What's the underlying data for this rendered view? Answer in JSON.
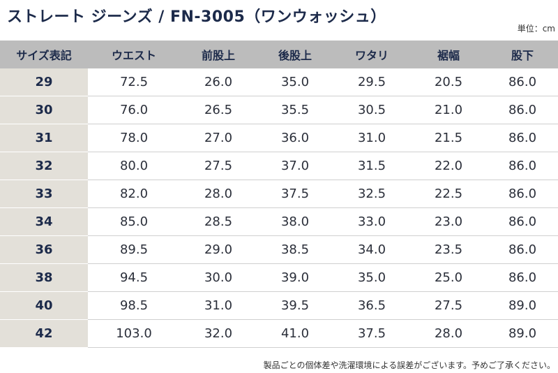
{
  "title": "ストレート ジーンズ / FN-3005（ワンウォッシュ）",
  "unit": "単位：cm",
  "headers": [
    "サイズ表記",
    "ウエスト",
    "前股上",
    "後股上",
    "ワタリ",
    "裾幅",
    "股下"
  ],
  "rows": [
    [
      "29",
      "72.5",
      "26.0",
      "35.0",
      "29.5",
      "20.5",
      "86.0"
    ],
    [
      "30",
      "76.0",
      "26.5",
      "35.5",
      "30.5",
      "21.0",
      "86.0"
    ],
    [
      "31",
      "78.0",
      "27.0",
      "36.0",
      "31.0",
      "21.5",
      "86.0"
    ],
    [
      "32",
      "80.0",
      "27.5",
      "37.0",
      "31.5",
      "22.0",
      "86.0"
    ],
    [
      "33",
      "82.0",
      "28.0",
      "37.5",
      "32.5",
      "22.5",
      "86.0"
    ],
    [
      "34",
      "85.0",
      "28.5",
      "38.0",
      "33.0",
      "23.0",
      "86.0"
    ],
    [
      "36",
      "89.5",
      "29.0",
      "38.5",
      "34.0",
      "23.5",
      "86.0"
    ],
    [
      "38",
      "94.5",
      "30.0",
      "39.0",
      "35.0",
      "25.0",
      "86.0"
    ],
    [
      "40",
      "98.5",
      "31.0",
      "39.5",
      "36.5",
      "27.5",
      "89.0"
    ],
    [
      "42",
      "103.0",
      "32.0",
      "41.0",
      "37.5",
      "28.0",
      "89.0"
    ]
  ],
  "note": "製品ごとの個体差や洗濯環境による誤差がございます。予めご了承ください。"
}
